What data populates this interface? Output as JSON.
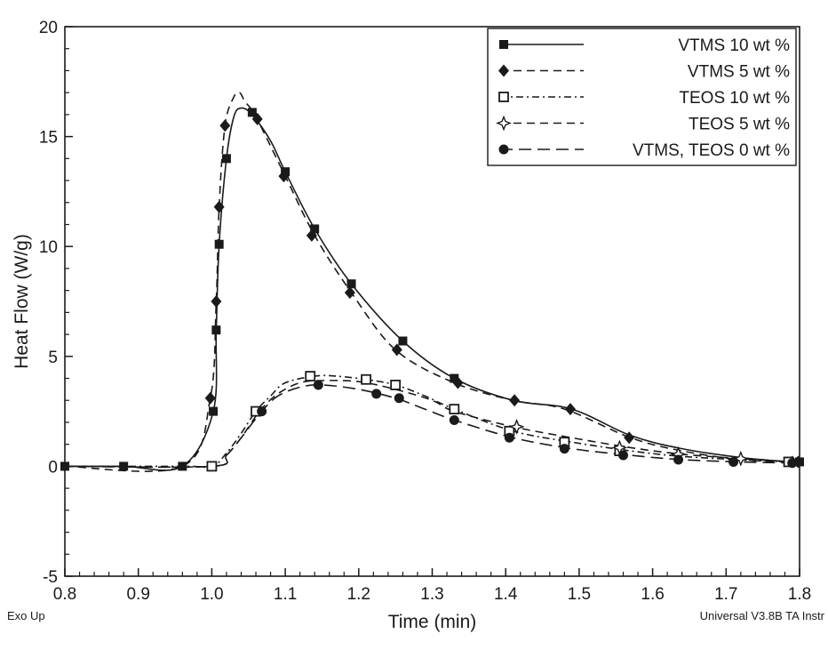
{
  "chart_data": {
    "type": "line",
    "title": "",
    "xlabel": "Time (min)",
    "ylabel": "Heat Flow (W/g)",
    "xlim": [
      0.8,
      1.8
    ],
    "ylim": [
      -5,
      20
    ],
    "xticks": [
      "0.8",
      "0.9",
      "1.0",
      "1.1",
      "1.2",
      "1.3",
      "1.4",
      "1.5",
      "1.6",
      "1.7",
      "1.8"
    ],
    "yticks": [
      "-5",
      "0",
      "5",
      "10",
      "15",
      "20"
    ],
    "grid": false,
    "legend_position": "top-right",
    "notes": {
      "bottom_left": "Exo Up",
      "bottom_right": "Universal V3.8B TA Instr"
    },
    "series": [
      {
        "name": "VTMS 10 wt %",
        "marker": "filled-square",
        "line": "solid",
        "x": [
          0.8,
          0.88,
          0.96,
          1.002,
          1.006,
          1.01,
          1.02,
          1.03,
          1.04,
          1.055,
          1.08,
          1.1,
          1.14,
          1.19,
          1.26,
          1.33,
          1.41,
          1.49,
          1.57,
          1.64,
          1.72,
          1.79,
          1.8
        ],
        "y": [
          0,
          0,
          0,
          2.5,
          6.2,
          10.1,
          14,
          15.9,
          16.3,
          16.0,
          14.8,
          13.4,
          10.8,
          8.3,
          5.7,
          4.0,
          3.0,
          2.6,
          1.4,
          0.8,
          0.4,
          0.2,
          0.2
        ],
        "marker_x": [
          0.8,
          0.88,
          0.96,
          1.002,
          1.006,
          1.01,
          1.02,
          1.055,
          1.1,
          1.14,
          1.19,
          1.26,
          1.33,
          1.8
        ],
        "marker_y": [
          0,
          0,
          0,
          2.5,
          6.2,
          10.1,
          14,
          16.1,
          13.4,
          10.8,
          8.3,
          5.7,
          4.0,
          0.2
        ]
      },
      {
        "name": "VTMS 5 wt %",
        "marker": "filled-diamond",
        "line": "dashed",
        "x": [
          0.8,
          0.96,
          0.998,
          1.006,
          1.01,
          1.018,
          1.03,
          1.038,
          1.045,
          1.06,
          1.1,
          1.14,
          1.19,
          1.25,
          1.33,
          1.41,
          1.48,
          1.57,
          1.64,
          1.72,
          1.79,
          1.8
        ],
        "y": [
          0,
          0,
          3.1,
          7.5,
          11.8,
          15.5,
          16.8,
          17.0,
          16.6,
          15.9,
          13.2,
          10.5,
          7.9,
          5.3,
          3.8,
          3.0,
          2.6,
          1.3,
          0.7,
          0.3,
          0.2,
          0.2
        ],
        "marker_x": [
          0.998,
          1.006,
          1.01,
          1.018,
          1.062,
          1.098,
          1.136,
          1.188,
          1.252,
          1.335,
          1.412,
          1.488,
          1.568,
          1.79,
          1.798
        ],
        "marker_y": [
          3.1,
          7.5,
          11.8,
          15.5,
          15.8,
          13.2,
          10.5,
          7.9,
          5.3,
          3.8,
          3.0,
          2.6,
          1.3,
          0.2,
          0.2
        ]
      },
      {
        "name": "TEOS 10 wt %",
        "marker": "open-square",
        "line": "dash-dot",
        "x": [
          0.8,
          0.96,
          1.0,
          1.02,
          1.04,
          1.06,
          1.08,
          1.1,
          1.14,
          1.17,
          1.21,
          1.25,
          1.29,
          1.33,
          1.41,
          1.49,
          1.57,
          1.64,
          1.72,
          1.79,
          1.8
        ],
        "y": [
          0,
          0,
          0,
          0.6,
          1.5,
          2.5,
          3.2,
          3.8,
          4.1,
          4.1,
          3.95,
          3.7,
          3.2,
          2.6,
          1.6,
          1.1,
          0.7,
          0.45,
          0.3,
          0.2,
          0.2
        ],
        "marker_x": [
          1.0,
          1.06,
          1.134,
          1.21,
          1.25,
          1.33,
          1.405,
          1.48,
          1.555,
          1.785
        ],
        "marker_y": [
          0,
          2.5,
          4.1,
          3.95,
          3.7,
          2.6,
          1.6,
          1.1,
          0.7,
          0.2
        ]
      },
      {
        "name": "TEOS 5 wt %",
        "marker": "open-star",
        "line": "dashed",
        "x": [
          0.8,
          1.0,
          1.02,
          1.04,
          1.065,
          1.09,
          1.12,
          1.15,
          1.2,
          1.25,
          1.3,
          1.33,
          1.41,
          1.49,
          1.57,
          1.64,
          1.72,
          1.79,
          1.8
        ],
        "y": [
          0,
          0,
          0.5,
          1.3,
          2.5,
          3.3,
          3.8,
          3.9,
          3.85,
          3.5,
          3.0,
          2.5,
          1.8,
          1.3,
          0.85,
          0.55,
          0.35,
          0.2,
          0.2
        ],
        "marker_x": [
          1.415,
          1.555,
          1.635,
          1.72
        ],
        "marker_y": [
          1.8,
          0.85,
          0.55,
          0.35
        ]
      },
      {
        "name": "VTMS, TEOS 0 wt %",
        "marker": "filled-circle",
        "line": "long-dash",
        "x": [
          0.8,
          1.0,
          1.02,
          1.04,
          1.068,
          1.09,
          1.12,
          1.15,
          1.2,
          1.25,
          1.29,
          1.33,
          1.41,
          1.49,
          1.57,
          1.64,
          1.72,
          1.79,
          1.8
        ],
        "y": [
          0,
          0,
          0.5,
          1.3,
          2.5,
          3.2,
          3.6,
          3.7,
          3.5,
          3.1,
          2.6,
          2.1,
          1.3,
          0.8,
          0.5,
          0.3,
          0.2,
          0.15,
          0.15
        ],
        "marker_x": [
          1.068,
          1.145,
          1.224,
          1.255,
          1.33,
          1.405,
          1.48,
          1.56,
          1.635,
          1.71,
          1.79
        ],
        "marker_y": [
          2.5,
          3.7,
          3.3,
          3.1,
          2.1,
          1.3,
          0.8,
          0.5,
          0.3,
          0.2,
          0.15
        ]
      }
    ]
  }
}
